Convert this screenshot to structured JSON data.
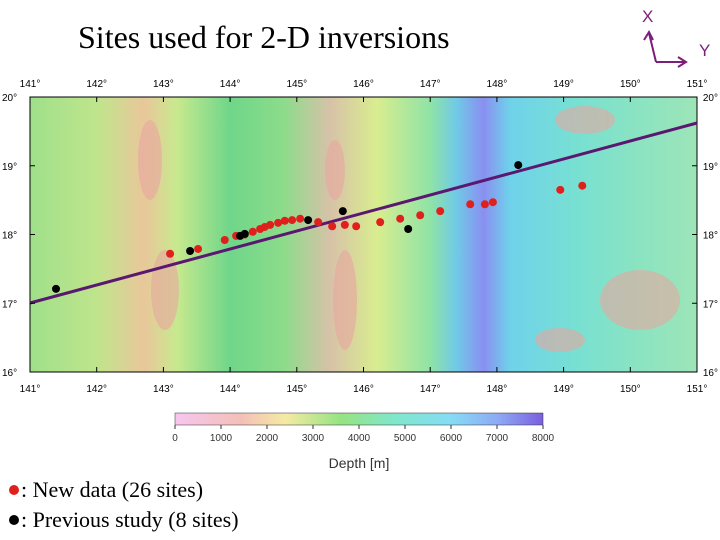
{
  "title": "Sites used for 2-D inversions",
  "axes_labels": {
    "x": "X",
    "y": "Y"
  },
  "map": {
    "xlim": [
      141,
      151
    ],
    "ylim": [
      16,
      20
    ],
    "xticks": [
      {
        "value": 141,
        "label": "141°"
      },
      {
        "value": 142,
        "label": "142°"
      },
      {
        "value": 143,
        "label": "143°"
      },
      {
        "value": 144,
        "label": "144°"
      },
      {
        "value": 145,
        "label": "145°"
      },
      {
        "value": 146,
        "label": "146°"
      },
      {
        "value": 147,
        "label": "147°"
      },
      {
        "value": 148,
        "label": "148°"
      },
      {
        "value": 149,
        "label": "149°"
      },
      {
        "value": 150,
        "label": "150°"
      },
      {
        "value": 151,
        "label": "151°"
      }
    ],
    "yticks": [
      {
        "value": 16,
        "label": "16°"
      },
      {
        "value": 17,
        "label": "17°"
      },
      {
        "value": 18,
        "label": "18°"
      },
      {
        "value": 19,
        "label": "19°"
      },
      {
        "value": 20,
        "label": "20°"
      }
    ]
  },
  "colorbar": {
    "label": "Depth [m]",
    "lim": [
      0,
      8000
    ],
    "ticks": [
      0,
      1000,
      2000,
      3000,
      4000,
      5000,
      6000,
      7000,
      8000
    ]
  },
  "new_sites": {
    "legend": ": New data (26 sites)",
    "color": "#e0201c",
    "lon": [
      143.1,
      143.52,
      143.92,
      144.09,
      144.34,
      144.45,
      144.52,
      144.6,
      144.72,
      144.82,
      144.93,
      145.05,
      145.32,
      145.53,
      145.72,
      145.89,
      146.25,
      146.55,
      146.85,
      147.15,
      147.6,
      147.82,
      147.94,
      148.95,
      149.28,
      144.22
    ],
    "lat": [
      17.72,
      17.79,
      17.92,
      17.98,
      18.04,
      18.08,
      18.11,
      18.14,
      18.17,
      18.2,
      18.21,
      18.23,
      18.18,
      18.12,
      18.14,
      18.12,
      18.18,
      18.23,
      18.28,
      18.34,
      18.44,
      18.44,
      18.47,
      18.65,
      18.71,
      18.0
    ]
  },
  "previous_sites": {
    "legend": ": Previous study (8 sites)",
    "color": "#000000",
    "lon": [
      141.39,
      143.4,
      144.15,
      144.22,
      145.17,
      145.69,
      146.67,
      148.32
    ],
    "lat": [
      17.21,
      17.76,
      17.98,
      18.01,
      18.21,
      18.34,
      18.08,
      19.01
    ]
  }
}
